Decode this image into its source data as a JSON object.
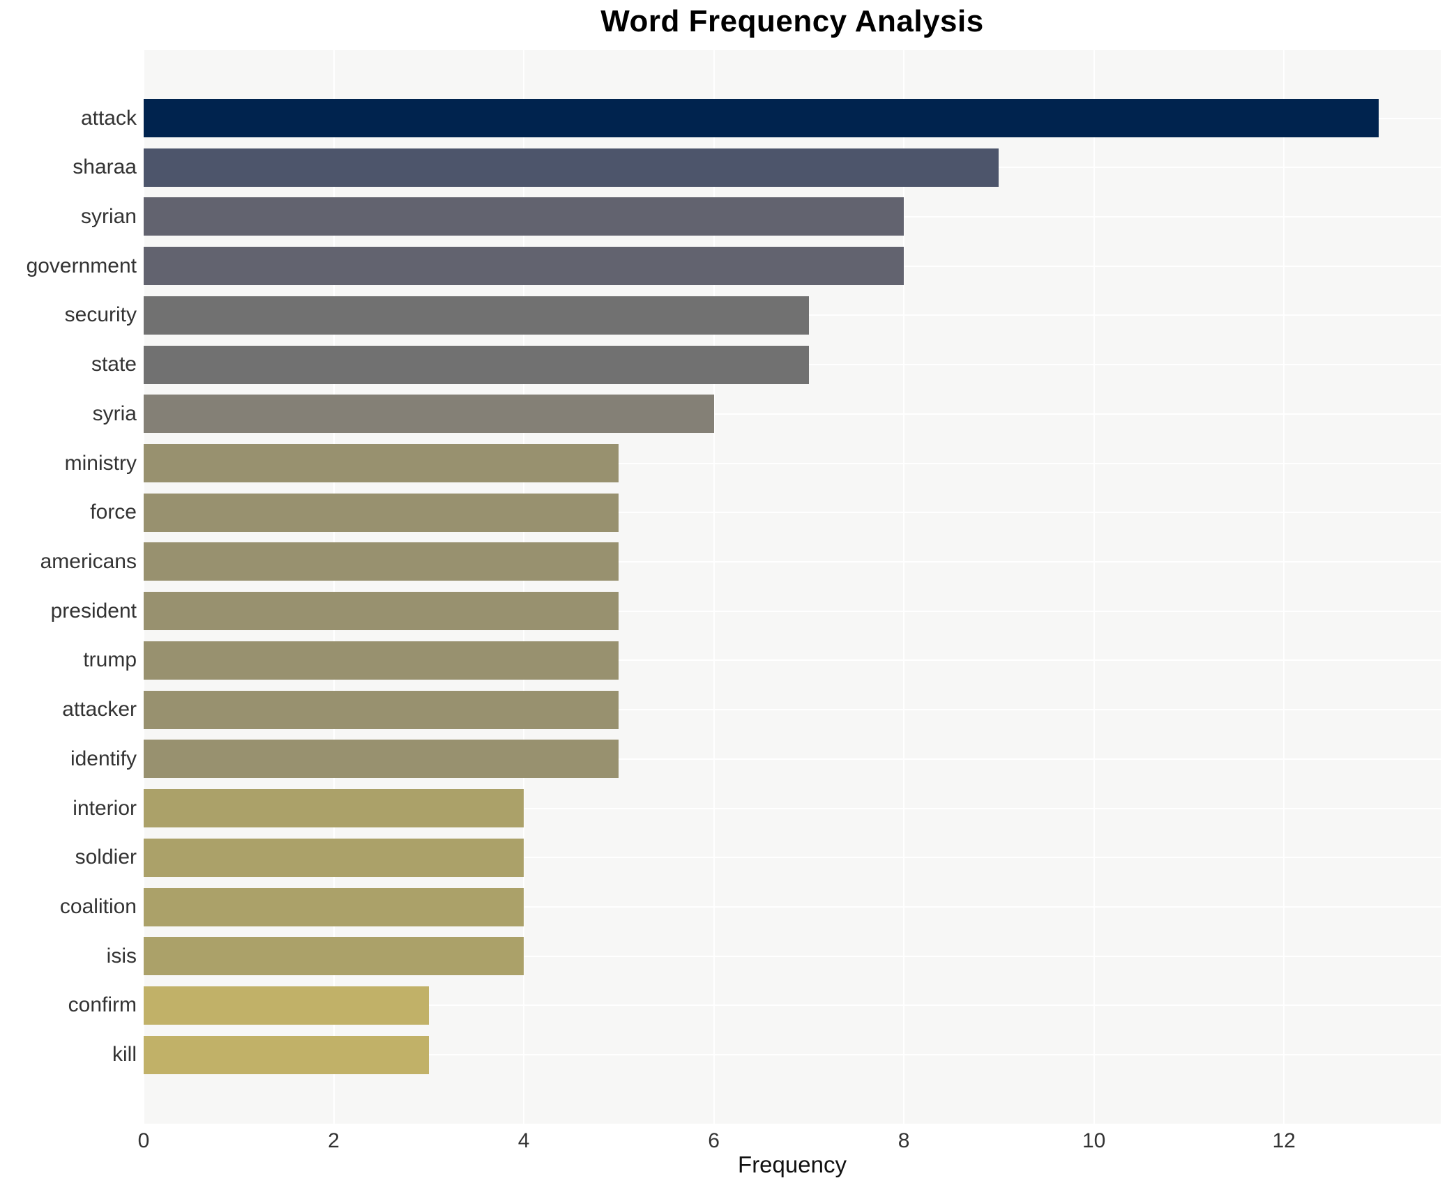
{
  "chart_data": {
    "type": "bar",
    "orientation": "horizontal",
    "title": "Word Frequency Analysis",
    "xlabel": "Frequency",
    "ylabel": "",
    "categories": [
      "attack",
      "sharaa",
      "syrian",
      "government",
      "security",
      "state",
      "syria",
      "ministry",
      "force",
      "americans",
      "president",
      "trump",
      "attacker",
      "identify",
      "interior",
      "soldier",
      "coalition",
      "isis",
      "confirm",
      "kill"
    ],
    "values": [
      13,
      9,
      8,
      8,
      7,
      7,
      6,
      5,
      5,
      5,
      5,
      5,
      5,
      5,
      4,
      4,
      4,
      4,
      3,
      3
    ],
    "bar_colors": [
      "#00234e",
      "#4d556b",
      "#62636f",
      "#62636f",
      "#717171",
      "#717171",
      "#848076",
      "#98916f",
      "#98916f",
      "#98916f",
      "#98916f",
      "#98916f",
      "#98916f",
      "#98916f",
      "#aba169",
      "#aba169",
      "#aba169",
      "#aba169",
      "#c1b168",
      "#c1b168"
    ],
    "xticks": [
      0,
      2,
      4,
      6,
      8,
      10,
      12
    ],
    "xlim": [
      0,
      13.65
    ],
    "grid": "white major gridlines on light gray panel",
    "legend": "none",
    "panel_bg": "#f7f7f6",
    "figure_bg": "#ffffff",
    "colormap": "cividis-like (dark navy for high frequency to khaki gold for low frequency)"
  }
}
